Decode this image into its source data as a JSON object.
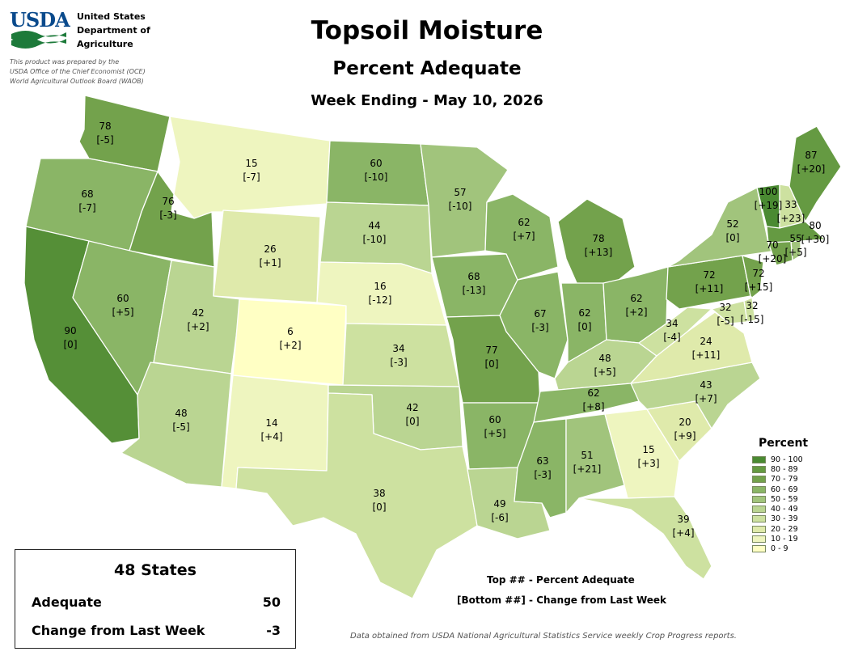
{
  "header": {
    "logo_text": "USDA",
    "department_lines": [
      "United States",
      "Department of",
      "Agriculture"
    ],
    "prepared_lines": [
      "This product was prepared by the",
      "USDA Office of the Chief Economist (OCE)",
      "World Agricultural Outlook Board (WAOB)"
    ],
    "title": "Topsoil Moisture",
    "subtitle": "Percent Adequate",
    "date_line": "Week Ending - May 10, 2026"
  },
  "states": [
    {
      "id": "WA",
      "value": "78",
      "change": "[-5]",
      "color": "#73a24c"
    },
    {
      "id": "OR",
      "value": "68",
      "change": "[-7]",
      "color": "#8ab566"
    },
    {
      "id": "CA",
      "value": "90",
      "change": "[0]",
      "color": "#558f37"
    },
    {
      "id": "ID",
      "value": "76",
      "change": "[-3]",
      "color": "#73a24c"
    },
    {
      "id": "NV",
      "value": "60",
      "change": "[+5]",
      "color": "#8ab566"
    },
    {
      "id": "MT",
      "value": "15",
      "change": "[-7]",
      "color": "#eef5bf"
    },
    {
      "id": "WY",
      "value": "26",
      "change": "[+1]",
      "color": "#dfeaab"
    },
    {
      "id": "UT",
      "value": "42",
      "change": "[+2]",
      "color": "#bad592"
    },
    {
      "id": "AZ",
      "value": "48",
      "change": "[-5]",
      "color": "#bad592"
    },
    {
      "id": "CO",
      "value": "6",
      "change": "[+2]",
      "color": "#ffffc4"
    },
    {
      "id": "NM",
      "value": "14",
      "change": "[+4]",
      "color": "#eef5bf"
    },
    {
      "id": "ND",
      "value": "60",
      "change": "[-10]",
      "color": "#8ab566"
    },
    {
      "id": "SD",
      "value": "44",
      "change": "[-10]",
      "color": "#bad592"
    },
    {
      "id": "NE",
      "value": "16",
      "change": "[-12]",
      "color": "#eef5bf"
    },
    {
      "id": "KS",
      "value": "34",
      "change": "[-3]",
      "color": "#cde1a0"
    },
    {
      "id": "OK",
      "value": "42",
      "change": "[0]",
      "color": "#bad592"
    },
    {
      "id": "TX",
      "value": "38",
      "change": "[0]",
      "color": "#cde1a0"
    },
    {
      "id": "MN",
      "value": "57",
      "change": "[-10]",
      "color": "#a1c47c"
    },
    {
      "id": "IA",
      "value": "68",
      "change": "[-13]",
      "color": "#8ab566"
    },
    {
      "id": "MO",
      "value": "77",
      "change": "[0]",
      "color": "#73a24c"
    },
    {
      "id": "AR",
      "value": "60",
      "change": "[+5]",
      "color": "#8ab566"
    },
    {
      "id": "LA",
      "value": "49",
      "change": "[-6]",
      "color": "#bad592"
    },
    {
      "id": "WI",
      "value": "62",
      "change": "[+7]",
      "color": "#8ab566"
    },
    {
      "id": "IL",
      "value": "67",
      "change": "[-3]",
      "color": "#8ab566"
    },
    {
      "id": "MI",
      "value": "78",
      "change": "[+13]",
      "color": "#73a24c"
    },
    {
      "id": "IN",
      "value": "62",
      "change": "[0]",
      "color": "#8ab566"
    },
    {
      "id": "OH",
      "value": "62",
      "change": "[+2]",
      "color": "#8ab566"
    },
    {
      "id": "KY",
      "value": "48",
      "change": "[+5]",
      "color": "#bad592"
    },
    {
      "id": "TN",
      "value": "62",
      "change": "[+8]",
      "color": "#8ab566"
    },
    {
      "id": "MS",
      "value": "63",
      "change": "[-3]",
      "color": "#8ab566"
    },
    {
      "id": "AL",
      "value": "51",
      "change": "[+21]",
      "color": "#a1c47c"
    },
    {
      "id": "GA",
      "value": "15",
      "change": "[+3]",
      "color": "#eef5bf"
    },
    {
      "id": "FL",
      "value": "39",
      "change": "[+4]",
      "color": "#cde1a0"
    },
    {
      "id": "SC",
      "value": "20",
      "change": "[+9]",
      "color": "#dfeaab"
    },
    {
      "id": "NC",
      "value": "43",
      "change": "[+7]",
      "color": "#bad592"
    },
    {
      "id": "VA",
      "value": "24",
      "change": "[+11]",
      "color": "#dfeaab"
    },
    {
      "id": "WV",
      "value": "34",
      "change": "[-4]",
      "color": "#cde1a0"
    },
    {
      "id": "MD",
      "value": "32",
      "change": "[-5]",
      "color": "#cde1a0"
    },
    {
      "id": "DE",
      "value": "32",
      "change": "[-15]",
      "color": "#cde1a0"
    },
    {
      "id": "PA",
      "value": "72",
      "change": "[+11]",
      "color": "#73a24c"
    },
    {
      "id": "NJ",
      "value": "72",
      "change": "[+15]",
      "color": "#73a24c"
    },
    {
      "id": "NY",
      "value": "52",
      "change": "[0]",
      "color": "#a1c47c"
    },
    {
      "id": "CT",
      "value": "70",
      "change": "[+20]",
      "color": "#73a24c"
    },
    {
      "id": "RI",
      "value": "55",
      "change": "[+5]",
      "color": "#a1c47c"
    },
    {
      "id": "MA",
      "value": "80",
      "change": "[+30]",
      "color": "#659a42"
    },
    {
      "id": "VT",
      "value": "100",
      "change": "[+19]",
      "color": "#4a8a32"
    },
    {
      "id": "NH",
      "value": "33",
      "change": "[+23]",
      "color": "#cde1a0"
    },
    {
      "id": "ME",
      "value": "87",
      "change": "[+20]",
      "color": "#659a42"
    }
  ],
  "legend": {
    "title": "Percent",
    "items": [
      {
        "label": "90 - 100",
        "color": "#4a8a32"
      },
      {
        "label": "80 - 89",
        "color": "#659a42"
      },
      {
        "label": "70 - 79",
        "color": "#73a24c"
      },
      {
        "label": "60 - 69",
        "color": "#8ab566"
      },
      {
        "label": "50 - 59",
        "color": "#a1c47c"
      },
      {
        "label": "40 - 49",
        "color": "#bad592"
      },
      {
        "label": "30 - 39",
        "color": "#cde1a0"
      },
      {
        "label": "20 - 29",
        "color": "#dfeaab"
      },
      {
        "label": "10 - 19",
        "color": "#eef5bf"
      },
      {
        "label": "0 - 9",
        "color": "#ffffc4"
      }
    ]
  },
  "notes": {
    "top_note": "Top ## - Percent Adequate",
    "bottom_note": "[Bottom ##] - Change from Last Week",
    "source": "Data obtained from USDA National Agricultural Statistics Service weekly Crop Progress reports."
  },
  "summary": {
    "title": "48 States",
    "adequate_label": "Adequate",
    "adequate_value": "50",
    "change_label": "Change from Last Week",
    "change_value": "-3"
  }
}
